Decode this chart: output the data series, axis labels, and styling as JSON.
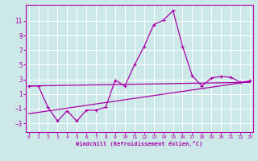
{
  "xlabel": "Windchill (Refroidissement éolien,°C)",
  "background_color": "#cde8e8",
  "grid_color": "#ffffff",
  "line_color": "#aa00aa",
  "x_ticks": [
    0,
    1,
    2,
    3,
    4,
    5,
    6,
    7,
    8,
    9,
    10,
    11,
    12,
    13,
    14,
    15,
    16,
    17,
    18,
    19,
    20,
    21,
    22,
    23
  ],
  "y_ticks": [
    -3,
    -1,
    1,
    3,
    5,
    7,
    9,
    11
  ],
  "xlim": [
    -0.3,
    23.3
  ],
  "ylim": [
    -4.2,
    13.2
  ],
  "line1_x": [
    0,
    1,
    2,
    3,
    4,
    5,
    6,
    7,
    8,
    9,
    10,
    11,
    12,
    13,
    14,
    15,
    16,
    17,
    18,
    19,
    20,
    21,
    22,
    23
  ],
  "line1_y": [
    2.1,
    2.1,
    -0.8,
    -2.7,
    -1.3,
    -2.7,
    -1.2,
    -1.2,
    -0.8,
    2.9,
    2.1,
    5.0,
    7.5,
    10.5,
    11.1,
    12.4,
    7.5,
    3.5,
    2.1,
    3.2,
    3.4,
    3.3,
    2.6,
    2.8
  ],
  "line2_x": [
    0,
    23
  ],
  "line2_y": [
    2.1,
    2.6
  ],
  "line3_x": [
    0,
    23
  ],
  "line3_y": [
    -1.7,
    2.7
  ]
}
